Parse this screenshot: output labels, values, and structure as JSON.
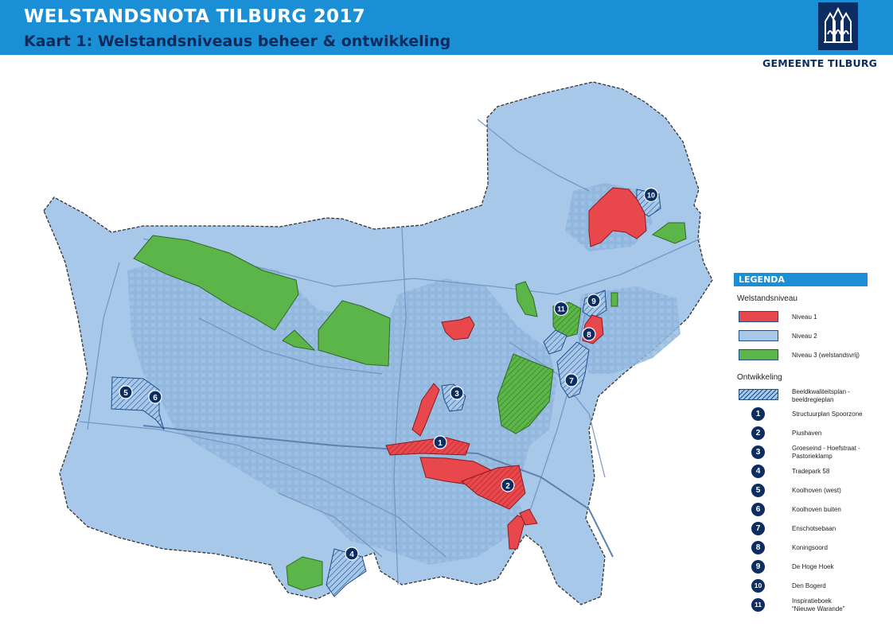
{
  "header": {
    "title": "WELSTANDSNOTA TILBURG 2017",
    "subtitle": "Kaart 1: Welstandsniveaus beheer & ontwikkeling",
    "municipality": "GEMEENTE TILBURG"
  },
  "colors": {
    "header_bg": "#1a8fd6",
    "niveau1": "#e8474b",
    "niveau2": "#a8c8ea",
    "niveau3": "#5cb548",
    "marker": "#0c2d61"
  },
  "legend": {
    "title": "LEGENDA",
    "welstandsniveau_heading": "Welstandsniveau",
    "niveaus": [
      {
        "label": "Niveau 1",
        "color": "#e8474b"
      },
      {
        "label": "Niveau 2",
        "color": "#a8c8ea"
      },
      {
        "label": "Niveau 3 (welstandsvrij)",
        "color": "#5cb548"
      }
    ],
    "ontwikkeling_heading": "Ontwikkeling",
    "hatch_label_1": "Beeldkwaliteitsplan -",
    "hatch_label_2": "beeldregieplan",
    "projects": [
      {
        "num": "1",
        "line1": "Structuurplan Spoorzone",
        "line2": ""
      },
      {
        "num": "2",
        "line1": "Piushaven",
        "line2": ""
      },
      {
        "num": "3",
        "line1": "Groeseind - Hoefstraat -",
        "line2": "Pastorieklamp"
      },
      {
        "num": "4",
        "line1": "Tradepark 58",
        "line2": ""
      },
      {
        "num": "5",
        "line1": "Koolhoven (west)",
        "line2": ""
      },
      {
        "num": "6",
        "line1": "Koolhoven buiten",
        "line2": ""
      },
      {
        "num": "7",
        "line1": "Enschotsebaan",
        "line2": ""
      },
      {
        "num": "8",
        "line1": "Koningsoord",
        "line2": ""
      },
      {
        "num": "9",
        "line1": "De Hoge Hoek",
        "line2": ""
      },
      {
        "num": "10",
        "line1": "Den Bogerd",
        "line2": ""
      },
      {
        "num": "11",
        "line1": "Inspiratieboek",
        "line2": "“Nieuwe Warande”"
      }
    ]
  },
  "map_markers": [
    "1",
    "2",
    "3",
    "4",
    "5",
    "6",
    "7",
    "8",
    "9",
    "10",
    "11"
  ]
}
